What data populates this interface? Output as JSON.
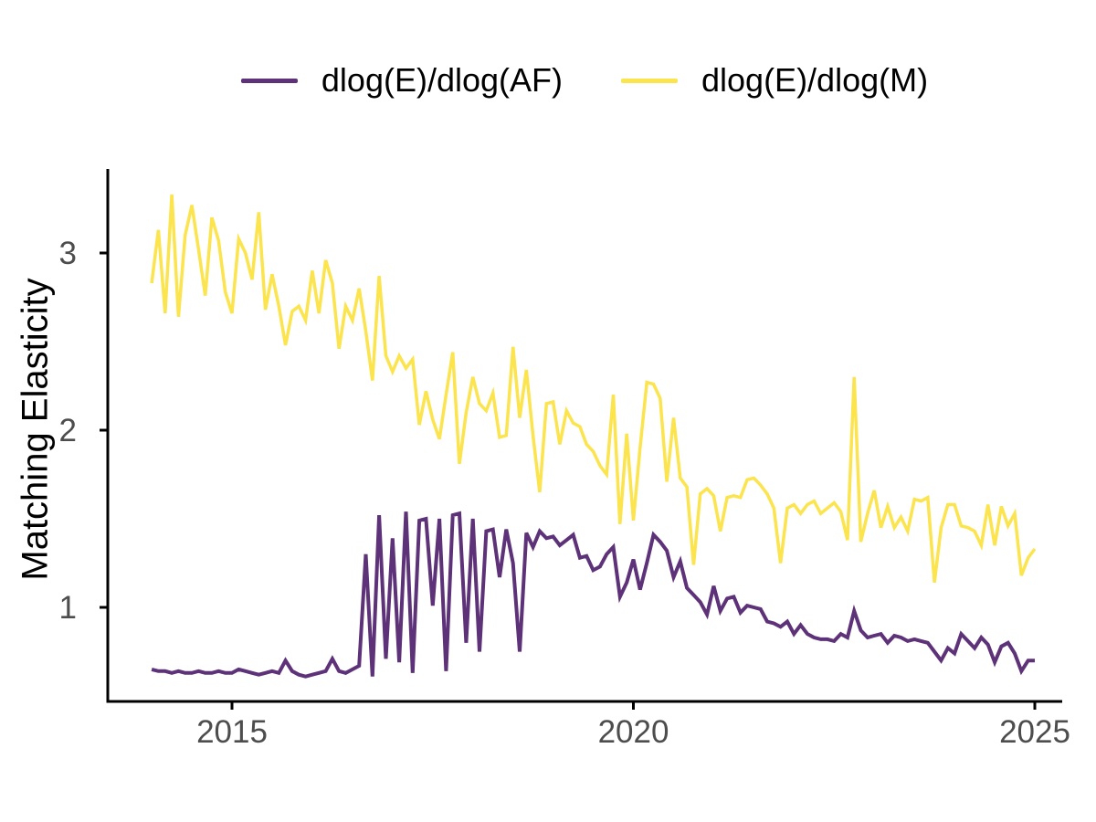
{
  "figure": {
    "background": "#ffffff"
  },
  "legend": {
    "items": [
      {
        "label": "dlog(E)/dlog(AF)",
        "color": "#5E3278"
      },
      {
        "label": "dlog(E)/dlog(M)",
        "color": "#FBE44D"
      }
    ]
  },
  "axes": {
    "line_color": "#000000",
    "tick_label_color": "#4D4D4D"
  },
  "chart_data": {
    "type": "line",
    "title": "",
    "xlabel": "",
    "ylabel": "Matching Elasticity",
    "grid": false,
    "legend_position": "top-center",
    "x_start_year": 2014,
    "x_step_months": 1,
    "x_ticks": [
      2015,
      2020,
      2025
    ],
    "y_ticks": [
      1,
      2,
      3
    ],
    "xlim": [
      2013.5,
      2025.35
    ],
    "ylim": [
      0.47,
      3.47
    ],
    "series": [
      {
        "name": "dlog(E)/dlog(AF)",
        "color": "#5E3278",
        "values": [
          0.65,
          0.64,
          0.64,
          0.63,
          0.64,
          0.63,
          0.63,
          0.64,
          0.63,
          0.63,
          0.64,
          0.63,
          0.63,
          0.65,
          0.64,
          0.63,
          0.62,
          0.63,
          0.64,
          0.63,
          0.7,
          0.64,
          0.62,
          0.61,
          0.62,
          0.63,
          0.64,
          0.71,
          0.64,
          0.63,
          0.65,
          0.67,
          1.3,
          0.61,
          1.52,
          0.71,
          1.39,
          0.69,
          1.54,
          0.63,
          1.49,
          1.5,
          1.01,
          1.5,
          0.64,
          1.52,
          1.53,
          0.8,
          1.5,
          0.75,
          1.43,
          1.44,
          1.17,
          1.44,
          1.25,
          0.75,
          1.42,
          1.34,
          1.43,
          1.39,
          1.4,
          1.35,
          1.38,
          1.41,
          1.28,
          1.29,
          1.21,
          1.23,
          1.3,
          1.34,
          1.06,
          1.14,
          1.27,
          1.1,
          1.25,
          1.41,
          1.37,
          1.32,
          1.17,
          1.26,
          1.11,
          1.07,
          1.03,
          0.96,
          1.12,
          0.98,
          1.05,
          1.06,
          0.97,
          1.01,
          1.0,
          0.99,
          0.92,
          0.91,
          0.89,
          0.92,
          0.85,
          0.9,
          0.85,
          0.83,
          0.82,
          0.82,
          0.81,
          0.85,
          0.83,
          0.98,
          0.87,
          0.83,
          0.84,
          0.85,
          0.8,
          0.84,
          0.83,
          0.81,
          0.82,
          0.81,
          0.8,
          0.75,
          0.7,
          0.77,
          0.74,
          0.85,
          0.81,
          0.77,
          0.83,
          0.79,
          0.69,
          0.78,
          0.8,
          0.74,
          0.64,
          0.7,
          0.7
        ]
      },
      {
        "name": "dlog(E)/dlog(M)",
        "color": "#FBE44D",
        "values": [
          2.83,
          3.13,
          2.66,
          3.33,
          2.64,
          3.1,
          3.27,
          3.02,
          2.76,
          3.2,
          3.07,
          2.78,
          2.66,
          3.08,
          3.0,
          2.85,
          3.23,
          2.68,
          2.88,
          2.7,
          2.48,
          2.67,
          2.7,
          2.62,
          2.9,
          2.66,
          2.96,
          2.83,
          2.46,
          2.7,
          2.62,
          2.8,
          2.56,
          2.28,
          2.87,
          2.42,
          2.33,
          2.42,
          2.35,
          2.4,
          2.03,
          2.22,
          2.06,
          1.95,
          2.2,
          2.44,
          1.81,
          2.1,
          2.3,
          2.15,
          2.11,
          2.21,
          1.96,
          1.97,
          2.47,
          2.07,
          2.34,
          1.97,
          1.65,
          2.15,
          2.16,
          1.92,
          2.11,
          2.04,
          2.02,
          1.92,
          1.88,
          1.8,
          1.75,
          2.2,
          1.47,
          1.98,
          1.49,
          1.9,
          2.27,
          2.26,
          2.18,
          1.71,
          2.07,
          1.73,
          1.68,
          1.24,
          1.64,
          1.67,
          1.63,
          1.43,
          1.62,
          1.63,
          1.62,
          1.72,
          1.73,
          1.69,
          1.64,
          1.56,
          1.25,
          1.56,
          1.58,
          1.53,
          1.58,
          1.6,
          1.53,
          1.56,
          1.59,
          1.54,
          1.38,
          2.3,
          1.37,
          1.53,
          1.66,
          1.45,
          1.57,
          1.45,
          1.51,
          1.43,
          1.61,
          1.6,
          1.62,
          1.14,
          1.45,
          1.58,
          1.58,
          1.46,
          1.45,
          1.43,
          1.35,
          1.58,
          1.35,
          1.57,
          1.46,
          1.53,
          1.18,
          1.28,
          1.33
        ]
      }
    ]
  }
}
